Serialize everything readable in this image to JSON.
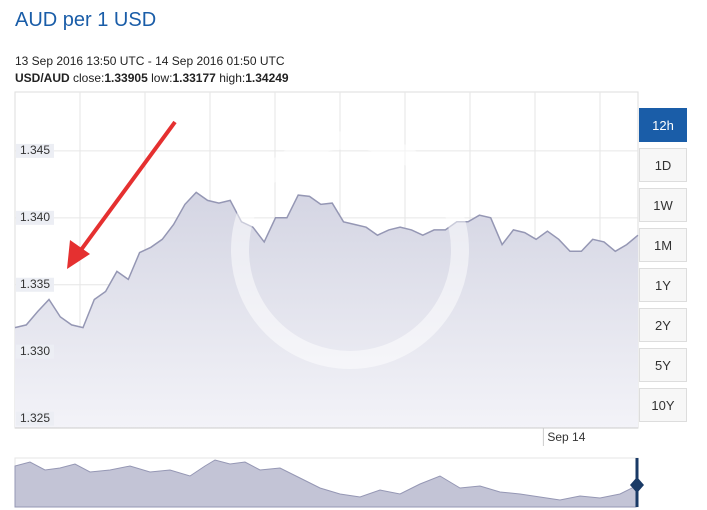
{
  "header": {
    "title": "AUD per 1 USD",
    "range": "13 Sep 2016 13:50 UTC - 14 Sep 2016 01:50 UTC",
    "pair": "USD/AUD",
    "stats": [
      {
        "label": "close:",
        "value": "1.33905"
      },
      {
        "label": "low:",
        "value": "1.33177"
      },
      {
        "label": "high:",
        "value": "1.34249"
      }
    ]
  },
  "chart_data": {
    "type": "area",
    "categories": [
      null,
      null,
      null,
      null,
      null,
      null,
      null,
      null,
      null,
      null,
      null,
      null,
      null,
      null,
      null,
      null,
      null,
      null,
      null,
      null,
      null,
      null,
      null,
      null,
      null,
      null,
      null,
      null,
      null,
      null,
      null,
      null,
      null,
      null,
      null,
      null,
      null,
      null,
      null,
      null,
      null,
      null,
      null,
      null,
      null,
      null,
      null,
      "Sep 14",
      null,
      null,
      null,
      null,
      null,
      null,
      null,
      null
    ],
    "values": [
      1.3318,
      1.332,
      1.333,
      1.3339,
      1.3326,
      1.332,
      1.3318,
      1.3339,
      1.3345,
      1.336,
      1.3354,
      1.3374,
      1.3378,
      1.3384,
      1.3395,
      1.341,
      1.3419,
      1.3413,
      1.3411,
      1.3413,
      1.3397,
      1.3393,
      1.3382,
      1.34,
      1.34,
      1.3417,
      1.3416,
      1.341,
      1.3411,
      1.3397,
      1.3395,
      1.3393,
      1.3387,
      1.3391,
      1.3393,
      1.3391,
      1.3387,
      1.3391,
      1.3391,
      1.3397,
      1.3397,
      1.3402,
      1.34,
      1.338,
      1.3391,
      1.3389,
      1.3384,
      1.339,
      1.3384,
      1.3375,
      1.3375,
      1.3384,
      1.3382,
      1.3375,
      1.338,
      1.3387
    ],
    "color": "#9597b4",
    "ylim": [
      1.3243,
      1.3494
    ],
    "yticks": [
      {
        "value": 1.325,
        "label": "1.325"
      },
      {
        "value": 1.33,
        "label": "1.330"
      },
      {
        "value": 1.335,
        "label": "1.335"
      },
      {
        "value": 1.34,
        "label": "1.340"
      },
      {
        "value": 1.345,
        "label": "1.345"
      }
    ],
    "grid": true
  },
  "controls": {
    "ranges": [
      "12h",
      "1D",
      "1W",
      "1M",
      "1Y",
      "2Y",
      "5Y",
      "10Y"
    ],
    "selected": "12h"
  }
}
